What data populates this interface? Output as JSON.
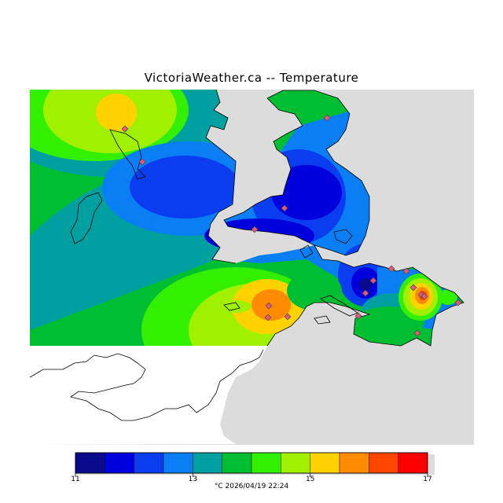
{
  "title": "VictoriaWeather.ca -- Temperature",
  "footer": {
    "unit": "°C",
    "timestamp": "2026/04/19 22:24"
  },
  "legend": {
    "ticks": [
      {
        "value": 11,
        "label": "11"
      },
      {
        "value": 13,
        "label": "13"
      },
      {
        "value": 15,
        "label": "15"
      },
      {
        "value": 17,
        "label": "17"
      }
    ],
    "bins": [
      {
        "from": 11.0,
        "to": 11.5,
        "color": "#0a0a8c"
      },
      {
        "from": 11.5,
        "to": 12.0,
        "color": "#0000dc"
      },
      {
        "from": 12.0,
        "to": 12.5,
        "color": "#0a3cf0"
      },
      {
        "from": 12.5,
        "to": 13.0,
        "color": "#0a7ff5"
      },
      {
        "from": 13.0,
        "to": 13.5,
        "color": "#00a0a0"
      },
      {
        "from": 13.5,
        "to": 14.0,
        "color": "#00be32"
      },
      {
        "from": 14.0,
        "to": 14.5,
        "color": "#32f000"
      },
      {
        "from": 14.5,
        "to": 15.0,
        "color": "#a0f000"
      },
      {
        "from": 15.0,
        "to": 15.5,
        "color": "#ffd200"
      },
      {
        "from": 15.5,
        "to": 16.0,
        "color": "#ff8c00"
      },
      {
        "from": 16.0,
        "to": 16.5,
        "color": "#ff4600"
      },
      {
        "from": 16.5,
        "to": 17.0,
        "color": "#ff0000"
      }
    ]
  },
  "colors": {
    "water": "#dcdcdc",
    "outside_land": "#ffffff",
    "station_marker": "#e05a78",
    "coastline": "#000000"
  }
}
